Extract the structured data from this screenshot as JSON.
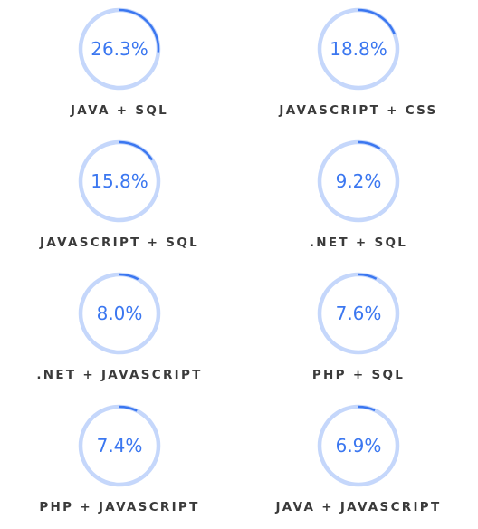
{
  "chart_data": {
    "type": "progress-rings",
    "items": [
      {
        "label": "JAVA + SQL",
        "display": "26.3%",
        "value": 26.3
      },
      {
        "label": "JAVASCRIPT + CSS",
        "display": "18.8%",
        "value": 18.8
      },
      {
        "label": "JAVASCRIPT + SQL",
        "display": "15.8%",
        "value": 15.8
      },
      {
        "label": ".NET + SQL",
        "display": "9.2%",
        "value": 9.2
      },
      {
        "label": ".NET + JAVASCRIPT",
        "display": "8.0%",
        "value": 8.0
      },
      {
        "label": "PHP + SQL",
        "display": "7.6%",
        "value": 7.6
      },
      {
        "label": "PHP + JAVASCRIPT",
        "display": "7.4%",
        "value": 7.4
      },
      {
        "label": "JAVA + JAVASCRIPT",
        "display": "6.9%",
        "value": 6.9
      }
    ],
    "max": 100,
    "colors": {
      "track": "#c5d7fb",
      "progress": "#3b77f0",
      "value_text": "#3b77f0",
      "label_text": "#3a3a3a"
    }
  }
}
